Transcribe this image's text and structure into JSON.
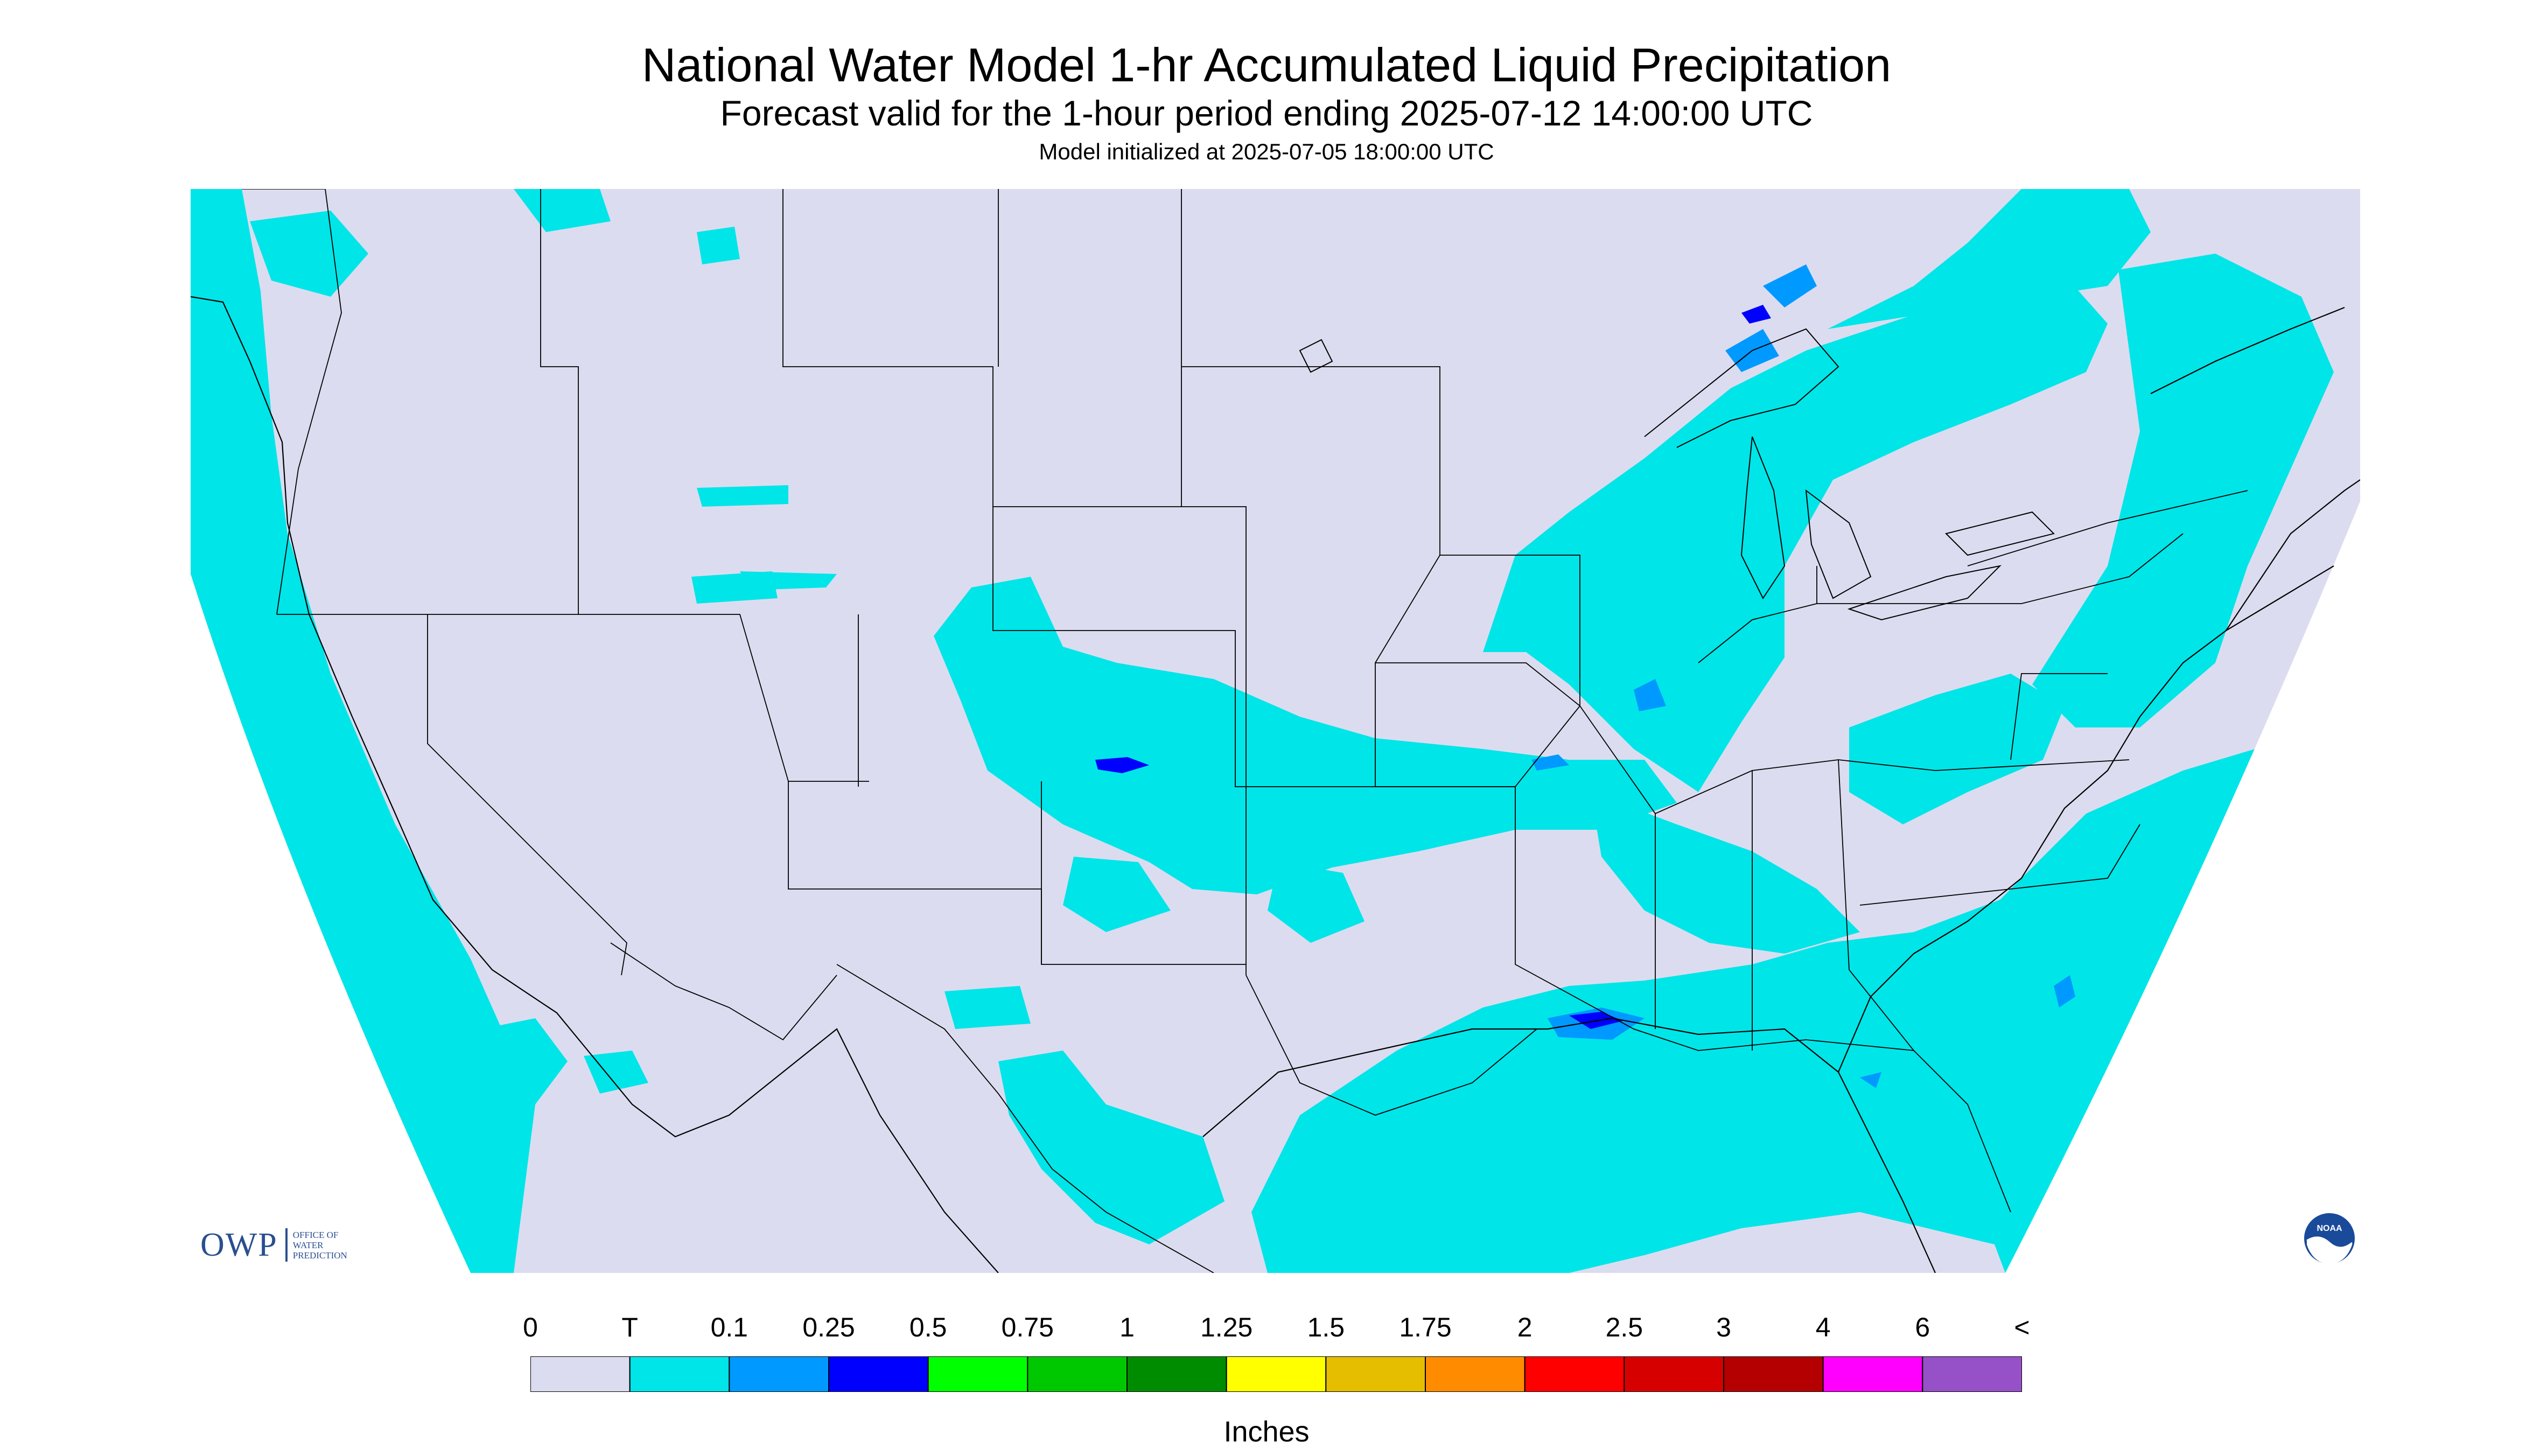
{
  "header": {
    "title": "National Water Model 1-hr Accumulated Liquid Precipitation",
    "subtitle": "Forecast valid for the 1-hour period ending 2025-07-12 14:00:00 UTC",
    "init": "Model initialized at 2025-07-05 18:00:00 UTC"
  },
  "logos": {
    "owp_mark": "OWP",
    "owp_text": [
      "OFFICE OF",
      "WATER",
      "PREDICTION"
    ],
    "noaa": "NOAA"
  },
  "legend": {
    "labels": [
      "0",
      "T",
      "0.1",
      "0.25",
      "0.5",
      "0.75",
      "1",
      "1.25",
      "1.5",
      "1.75",
      "2",
      "2.5",
      "3",
      "4",
      "6",
      "<"
    ],
    "colors": [
      "#dcdcf0",
      "#00e5e8",
      "#0099ff",
      "#0000ff",
      "#00ff00",
      "#00c800",
      "#008c00",
      "#ffff00",
      "#e6be00",
      "#ff8c00",
      "#ff0000",
      "#d70000",
      "#b40000",
      "#ff00ff",
      "#9650c8"
    ],
    "units": "Inches"
  },
  "colors": {
    "no_data": "#ffffff",
    "zero": "#dcdcf0",
    "trace": "#00e5e8",
    "light": "#0099ff",
    "moderate": "#0000ff",
    "boundary": "#000000"
  }
}
